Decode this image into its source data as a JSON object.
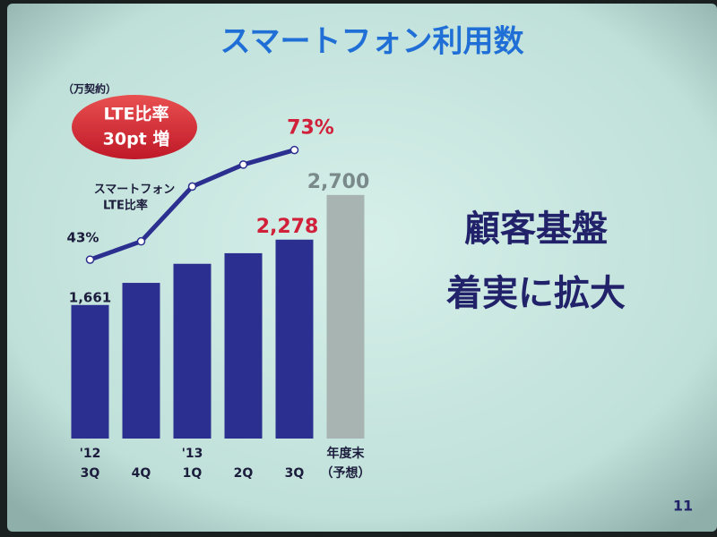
{
  "chart_data": {
    "type": "bar",
    "title": "スマートフォン利用数",
    "unit_label": "（万契約）",
    "callout": [
      "LTE比率",
      "30pt 増"
    ],
    "categories": [
      [
        "'12",
        "3Q"
      ],
      [
        "4Q"
      ],
      [
        "'13",
        "1Q"
      ],
      [
        "2Q"
      ],
      [
        "3Q"
      ],
      [
        "年度末",
        "（予想）"
      ]
    ],
    "values": [
      1661,
      1870,
      2050,
      2150,
      2278,
      2700
    ],
    "value_labels": [
      "1,661",
      null,
      null,
      null,
      "2,278",
      "2,700"
    ],
    "value_label_colors": [
      "#1c1c3c",
      null,
      null,
      null,
      "#d0203a",
      "#7a8a8a"
    ],
    "colors": [
      "#2b2f8f",
      "#2b2f8f",
      "#2b2f8f",
      "#2b2f8f",
      "#2b2f8f",
      "#a8b4b2"
    ],
    "ylim": [
      400,
      2800
    ],
    "line": {
      "type": "line",
      "name": [
        "スマートフォン",
        "LTE比率"
      ],
      "color": "#2b2f8f",
      "axis": "y2",
      "values": [
        43,
        48,
        63,
        69,
        73,
        null
      ],
      "value_labels": [
        "43%",
        null,
        null,
        null,
        "73%",
        null
      ],
      "value_label_colors": [
        "#1c1c3c",
        null,
        null,
        null,
        "#d0203a",
        null
      ]
    },
    "y2lim": [
      20,
      80
    ],
    "message": [
      "顧客基盤",
      "着実に拡大"
    ],
    "page_number": "11"
  }
}
